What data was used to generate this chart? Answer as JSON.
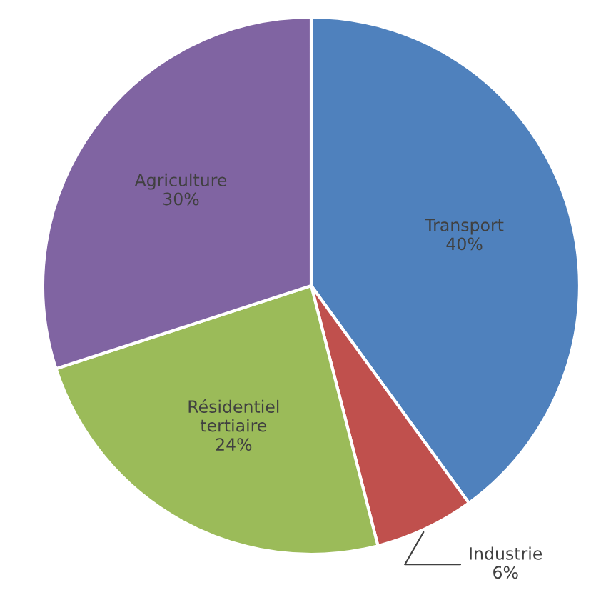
{
  "chart_data": {
    "type": "pie",
    "categories": [
      "Transport",
      "Industrie",
      "Résidentiel\ntertiaire",
      "Agriculture"
    ],
    "values": [
      40,
      6,
      24,
      30
    ],
    "value_labels": [
      "40%",
      "6%",
      "24%",
      "30%"
    ],
    "colors": [
      "#4f81bd",
      "#c0504d",
      "#9bbb59",
      "#8064a2"
    ]
  }
}
